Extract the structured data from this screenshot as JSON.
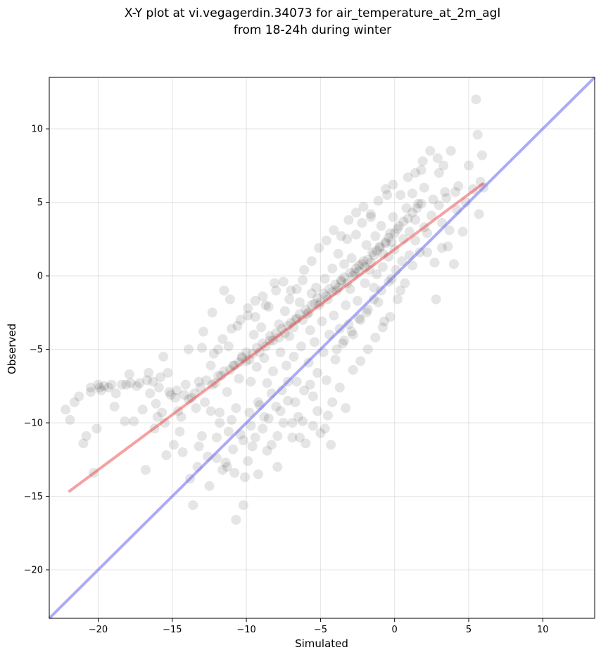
{
  "chart_data": {
    "type": "scatter",
    "title": [
      "X-Y plot at vi.vegagerdin.34073 for air_temperature_at_2m_agl",
      "from 18-24h during winter"
    ],
    "xlabel": "Simulated",
    "ylabel": "Observed",
    "xlim": [
      -23.3,
      13.5
    ],
    "ylim": [
      -23.3,
      13.5
    ],
    "xticks": [
      -20,
      -15,
      -10,
      -5,
      0,
      5,
      10
    ],
    "yticks": [
      -20,
      -15,
      -10,
      -5,
      0,
      5,
      10
    ],
    "xtick_labels": [
      "−20",
      "−15",
      "−10",
      "−5",
      "0",
      "5",
      "10"
    ],
    "ytick_labels": [
      "−20",
      "−15",
      "−10",
      "−5",
      "0",
      "5",
      "10"
    ],
    "grid": true,
    "legend": "none",
    "point_color": "#000000",
    "point_opacity": 0.1,
    "fit_line": {
      "color": "#ee4444",
      "x": [
        -22,
        6
      ],
      "y": [
        -14.7,
        6.3
      ]
    },
    "identity_line": {
      "color": "#6666ee",
      "x": [
        -23.3,
        13.5
      ],
      "y": [
        -23.3,
        13.5
      ]
    },
    "points": [
      [
        -22.2,
        -9.1
      ],
      [
        -21.9,
        -9.8
      ],
      [
        -21.6,
        -8.6
      ],
      [
        -21.3,
        -8.2
      ],
      [
        -21.0,
        -11.4
      ],
      [
        -20.8,
        -10.9
      ],
      [
        -20.5,
        -7.6
      ],
      [
        -20.3,
        -13.4
      ],
      [
        -20.1,
        -10.4
      ],
      [
        -20.0,
        -7.4
      ],
      [
        -19.8,
        -7.8
      ],
      [
        -19.6,
        -7.5
      ],
      [
        -19.3,
        -7.6
      ],
      [
        -19.1,
        -7.4
      ],
      [
        -18.9,
        -8.9
      ],
      [
        -18.8,
        -8.0
      ],
      [
        -18.4,
        -7.4
      ],
      [
        -18.1,
        -7.4
      ],
      [
        -18.2,
        -9.9
      ],
      [
        -17.9,
        -6.7
      ],
      [
        -17.6,
        -9.9
      ],
      [
        -17.4,
        -7.5
      ],
      [
        -17.2,
        -7.3
      ],
      [
        -17.0,
        -9.1
      ],
      [
        -16.8,
        -13.2
      ],
      [
        -16.6,
        -6.6
      ],
      [
        -16.5,
        -8.0
      ],
      [
        -16.3,
        -7.2
      ],
      [
        -16.1,
        -8.7
      ],
      [
        -16.0,
        -9.6
      ],
      [
        -15.8,
        -6.9
      ],
      [
        -15.6,
        -5.5
      ],
      [
        -15.5,
        -10.0
      ],
      [
        -15.4,
        -12.2
      ],
      [
        -15.3,
        -6.6
      ],
      [
        -15.1,
        -8.1
      ],
      [
        -14.9,
        -11.5
      ],
      [
        -14.7,
        -7.8
      ],
      [
        -14.6,
        -9.2
      ],
      [
        -14.4,
        -9.6
      ],
      [
        -14.3,
        -12.0
      ],
      [
        -14.1,
        -7.4
      ],
      [
        -13.9,
        -5.0
      ],
      [
        -13.8,
        -13.8
      ],
      [
        -13.7,
        -8.3
      ],
      [
        -13.6,
        -15.6
      ],
      [
        -13.4,
        -9.0
      ],
      [
        -13.3,
        -13.0
      ],
      [
        -13.2,
        -7.2
      ],
      [
        -13.0,
        -10.9
      ],
      [
        -12.9,
        -3.8
      ],
      [
        -12.8,
        -8.6
      ],
      [
        -12.6,
        -12.3
      ],
      [
        -12.5,
        -14.3
      ],
      [
        -12.4,
        -6.1
      ],
      [
        -12.3,
        -2.5
      ],
      [
        -12.1,
        -7.3
      ],
      [
        -12.0,
        -11.0
      ],
      [
        -11.9,
        -5.0
      ],
      [
        -11.8,
        -9.3
      ],
      [
        -11.7,
        -6.8
      ],
      [
        -11.6,
        -13.2
      ],
      [
        -11.5,
        -1.0
      ],
      [
        -11.4,
        -12.7
      ],
      [
        -11.3,
        -7.9
      ],
      [
        -11.2,
        -4.8
      ],
      [
        -11.1,
        -1.6
      ],
      [
        -11.0,
        -9.8
      ],
      [
        -10.9,
        -6.1
      ],
      [
        -10.8,
        -13.4
      ],
      [
        -10.7,
        -16.6
      ],
      [
        -10.6,
        -3.4
      ],
      [
        -10.5,
        -7.0
      ],
      [
        -10.4,
        -10.8
      ],
      [
        -10.3,
        -5.5
      ],
      [
        -10.2,
        -15.6
      ],
      [
        -10.1,
        -13.7
      ],
      [
        -10.0,
        -5.8
      ],
      [
        -9.9,
        -2.7
      ],
      [
        -9.8,
        -9.3
      ],
      [
        -9.7,
        -7.2
      ],
      [
        -9.6,
        -11.6
      ],
      [
        -9.5,
        -4.0
      ],
      [
        -9.4,
        -1.7
      ],
      [
        -9.3,
        -6.2
      ],
      [
        -9.2,
        -13.5
      ],
      [
        -9.1,
        -8.8
      ],
      [
        -9.0,
        -3.5
      ],
      [
        -8.9,
        -10.4
      ],
      [
        -8.8,
        -5.6
      ],
      [
        -8.7,
        -2.0
      ],
      [
        -8.6,
        -7.3
      ],
      [
        -8.5,
        -9.7
      ],
      [
        -8.4,
        -4.4
      ],
      [
        -8.3,
        -11.5
      ],
      [
        -8.2,
        -6.5
      ],
      [
        -8.1,
        -0.5
      ],
      [
        -8.0,
        -8.9
      ],
      [
        -7.9,
        -13.0
      ],
      [
        -7.8,
        -3.3
      ],
      [
        -7.7,
        -5.2
      ],
      [
        -7.6,
        -7.8
      ],
      [
        -7.5,
        -10.0
      ],
      [
        -7.4,
        -2.4
      ],
      [
        -7.3,
        -6.1
      ],
      [
        -7.2,
        -8.5
      ],
      [
        -7.1,
        -4.1
      ],
      [
        -7.0,
        -1.0
      ],
      [
        -6.9,
        -11.0
      ],
      [
        -6.8,
        -5.5
      ],
      [
        -6.7,
        -3.0
      ],
      [
        -6.6,
        -7.2
      ],
      [
        -6.5,
        -9.6
      ],
      [
        -6.4,
        -1.8
      ],
      [
        -6.3,
        -4.8
      ],
      [
        -6.2,
        -0.3
      ],
      [
        -6.1,
        -7.8
      ],
      [
        -6.0,
        -11.4
      ],
      [
        -5.9,
        -2.6
      ],
      [
        -5.8,
        -5.9
      ],
      [
        -5.7,
        -3.7
      ],
      [
        -5.6,
        -1.2
      ],
      [
        -5.5,
        -8.2
      ],
      [
        -5.4,
        -4.5
      ],
      [
        -5.3,
        -0.8
      ],
      [
        -5.2,
        -6.6
      ],
      [
        -5.1,
        -2.0
      ],
      [
        -5.0,
        -10.7
      ],
      [
        -4.9,
        -3.1
      ],
      [
        -4.8,
        -5.2
      ],
      [
        -4.7,
        -0.2
      ],
      [
        -4.6,
        -7.1
      ],
      [
        -4.5,
        -1.6
      ],
      [
        -4.4,
        -4.0
      ],
      [
        -4.3,
        -11.5
      ],
      [
        -4.2,
        0.5
      ],
      [
        -4.1,
        -2.7
      ],
      [
        -4.0,
        -5.7
      ],
      [
        -3.9,
        -1.0
      ],
      [
        -3.8,
        1.5
      ],
      [
        -3.7,
        -3.6
      ],
      [
        -3.6,
        -0.4
      ],
      [
        -3.5,
        -4.6
      ],
      [
        -3.4,
        0.8
      ],
      [
        -3.3,
        -2.0
      ],
      [
        -3.2,
        2.5
      ],
      [
        -3.1,
        -3.3
      ],
      [
        -3.0,
        -0.9
      ],
      [
        -2.9,
        1.2
      ],
      [
        -2.8,
        -4.0
      ],
      [
        -2.7,
        0.2
      ],
      [
        -2.6,
        2.8
      ],
      [
        -2.5,
        -1.7
      ],
      [
        -2.4,
        0.7
      ],
      [
        -2.3,
        -3.0
      ],
      [
        -2.2,
        3.6
      ],
      [
        -2.1,
        1.0
      ],
      [
        -2.0,
        -0.5
      ],
      [
        -1.9,
        2.1
      ],
      [
        -1.8,
        -2.3
      ],
      [
        -1.7,
        0.4
      ],
      [
        -1.6,
        4.2
      ],
      [
        -1.5,
        1.6
      ],
      [
        -1.4,
        -0.8
      ],
      [
        -1.3,
        2.7
      ],
      [
        -1.2,
        0.1
      ],
      [
        -1.1,
        -1.8
      ],
      [
        -1.0,
        1.9
      ],
      [
        -0.9,
        3.4
      ],
      [
        -0.8,
        0.6
      ],
      [
        -0.7,
        -3.1
      ],
      [
        -0.6,
        2.3
      ],
      [
        -0.5,
        5.5
      ],
      [
        -0.4,
        1.3
      ],
      [
        -0.3,
        2.9
      ],
      [
        -0.2,
        -0.2
      ],
      [
        -0.1,
        4.0
      ],
      [
        0.0,
        1.8
      ],
      [
        0.2,
        3.2
      ],
      [
        0.4,
        -1.0
      ],
      [
        0.6,
        2.5
      ],
      [
        0.8,
        4.6
      ],
      [
        1.0,
        3.0
      ],
      [
        1.2,
        5.6
      ],
      [
        1.4,
        3.8
      ],
      [
        1.6,
        4.9
      ],
      [
        1.8,
        7.2
      ],
      [
        2.0,
        6.0
      ],
      [
        2.2,
        1.6
      ],
      [
        2.4,
        8.5
      ],
      [
        2.6,
        5.2
      ],
      [
        2.8,
        -1.6
      ],
      [
        3.0,
        7.0
      ],
      [
        3.2,
        3.6
      ],
      [
        3.4,
        5.7
      ],
      [
        3.6,
        2.0
      ],
      [
        3.8,
        8.5
      ],
      [
        4.0,
        0.8
      ],
      [
        4.2,
        4.5
      ],
      [
        4.6,
        3.0
      ],
      [
        5.0,
        7.5
      ],
      [
        5.5,
        12.0
      ],
      [
        5.6,
        9.6
      ],
      [
        5.7,
        4.2
      ],
      [
        5.8,
        6.4
      ],
      [
        5.9,
        8.2
      ],
      [
        6.0,
        6.0
      ],
      [
        -20.5,
        -7.9
      ],
      [
        -19.9,
        -7.6
      ],
      [
        -17.8,
        -7.3
      ],
      [
        -16.7,
        -7.1
      ],
      [
        -15.9,
        -7.6
      ],
      [
        -15.2,
        -7.9
      ],
      [
        -14.8,
        -8.3
      ],
      [
        -14.2,
        -8.1
      ],
      [
        -13.9,
        -8.4
      ],
      [
        -13.5,
        -8.0
      ],
      [
        -13.1,
        -7.6
      ],
      [
        -12.7,
        -7.1
      ],
      [
        -12.3,
        -7.4
      ],
      [
        -11.9,
        -6.8
      ],
      [
        -11.5,
        -6.5
      ],
      [
        -11.1,
        -6.4
      ],
      [
        -10.8,
        -6.1
      ],
      [
        -10.5,
        -5.9
      ],
      [
        -10.3,
        -5.6
      ],
      [
        -10.0,
        -5.2
      ],
      [
        -9.8,
        -5.7
      ],
      [
        -9.6,
        -5.3
      ],
      [
        -9.3,
        -4.9
      ],
      [
        -9.1,
        -5.2
      ],
      [
        -8.9,
        -4.6
      ],
      [
        -8.7,
        -4.8
      ],
      [
        -8.4,
        -4.1
      ],
      [
        -8.2,
        -4.4
      ],
      [
        -8.0,
        -3.9
      ],
      [
        -7.8,
        -4.2
      ],
      [
        -7.6,
        -3.6
      ],
      [
        -7.4,
        -3.9
      ],
      [
        -7.2,
        -3.4
      ],
      [
        -7.0,
        -3.2
      ],
      [
        -6.8,
        -3.5
      ],
      [
        -6.6,
        -2.9
      ],
      [
        -6.4,
        -2.6
      ],
      [
        -6.2,
        -3.0
      ],
      [
        -6.0,
        -2.3
      ],
      [
        -5.8,
        -2.5
      ],
      [
        -5.6,
        -2.0
      ],
      [
        -5.4,
        -1.9
      ],
      [
        -5.2,
        -1.5
      ],
      [
        -5.0,
        -1.8
      ],
      [
        -4.8,
        -1.2
      ],
      [
        -4.6,
        -1.4
      ],
      [
        -4.4,
        -0.9
      ],
      [
        -4.2,
        -1.1
      ],
      [
        -4.0,
        -0.6
      ],
      [
        -3.8,
        -0.8
      ],
      [
        -3.6,
        -0.3
      ],
      [
        -3.4,
        -0.1
      ],
      [
        -3.2,
        -0.5
      ],
      [
        -3.0,
        0.2
      ],
      [
        -2.8,
        0.0
      ],
      [
        -2.6,
        0.5
      ],
      [
        -2.4,
        0.3
      ],
      [
        -2.2,
        0.8
      ],
      [
        -2.0,
        0.6
      ],
      [
        -1.8,
        1.1
      ],
      [
        -1.6,
        0.9
      ],
      [
        -1.4,
        1.4
      ],
      [
        -1.2,
        1.7
      ],
      [
        -1.0,
        2.0
      ],
      [
        -0.8,
        1.5
      ],
      [
        -0.6,
        2.2
      ],
      [
        -0.4,
        2.6
      ],
      [
        -0.2,
        2.3
      ],
      [
        0.0,
        2.9
      ],
      [
        0.3,
        3.4
      ],
      [
        0.6,
        3.7
      ],
      [
        0.9,
        3.9
      ],
      [
        1.2,
        4.3
      ],
      [
        1.5,
        4.6
      ],
      [
        1.8,
        4.9
      ],
      [
        -12.4,
        -9.2
      ],
      [
        -11.8,
        -10.0
      ],
      [
        -11.2,
        -10.6
      ],
      [
        -10.7,
        -9.0
      ],
      [
        -10.2,
        -11.2
      ],
      [
        -9.7,
        -10.2
      ],
      [
        -9.2,
        -8.6
      ],
      [
        -8.8,
        -9.6
      ],
      [
        -8.3,
        -8.0
      ],
      [
        -7.7,
        -9.2
      ],
      [
        -7.2,
        -7.2
      ],
      [
        -6.7,
        -8.6
      ],
      [
        -6.2,
        -9.9
      ],
      [
        -5.7,
        -7.4
      ],
      [
        -5.2,
        -9.2
      ],
      [
        -4.7,
        -10.4
      ],
      [
        -4.2,
        -8.6
      ],
      [
        -3.7,
        -7.6
      ],
      [
        -3.3,
        -9.0
      ],
      [
        -2.8,
        -6.4
      ],
      [
        -2.3,
        -5.8
      ],
      [
        -1.8,
        -5.0
      ],
      [
        -1.3,
        -4.2
      ],
      [
        -0.8,
        -3.5
      ],
      [
        -0.3,
        -2.8
      ],
      [
        0.2,
        -1.6
      ],
      [
        0.7,
        -0.5
      ],
      [
        1.2,
        0.7
      ],
      [
        1.7,
        1.6
      ],
      [
        2.2,
        2.9
      ],
      [
        2.7,
        0.9
      ],
      [
        3.2,
        1.9
      ],
      [
        3.7,
        3.1
      ],
      [
        4.3,
        6.1
      ],
      [
        4.8,
        5.0
      ],
      [
        -16.2,
        -10.4
      ],
      [
        -15.7,
        -9.3
      ],
      [
        -14.5,
        -10.6
      ],
      [
        -13.2,
        -11.6
      ],
      [
        -12.0,
        -12.4
      ],
      [
        -11.3,
        -13.0
      ],
      [
        -10.9,
        -11.8
      ],
      [
        -9.9,
        -12.6
      ],
      [
        -9.4,
        -11.0
      ],
      [
        -8.6,
        -11.9
      ],
      [
        -7.9,
        -10.9
      ],
      [
        -6.9,
        -10.0
      ],
      [
        -6.4,
        -11.0
      ],
      [
        -5.5,
        -10.2
      ],
      [
        -4.5,
        -9.5
      ],
      [
        -3.9,
        -5.0
      ],
      [
        -3.4,
        -4.4
      ],
      [
        -2.9,
        -3.8
      ],
      [
        -2.4,
        -2.9
      ],
      [
        -1.9,
        -2.5
      ],
      [
        -1.4,
        -1.6
      ],
      [
        -0.9,
        -1.0
      ],
      [
        -0.4,
        -0.4
      ],
      [
        0.1,
        0.4
      ],
      [
        0.5,
        1.0
      ],
      [
        1.0,
        1.4
      ],
      [
        1.4,
        2.4
      ],
      [
        2.0,
        3.3
      ],
      [
        2.5,
        4.1
      ],
      [
        3.0,
        4.8
      ],
      [
        3.5,
        5.3
      ],
      [
        4.1,
        5.7
      ],
      [
        5.3,
        5.9
      ],
      [
        -13.0,
        -4.9
      ],
      [
        -12.2,
        -5.3
      ],
      [
        -11.6,
        -4.3
      ],
      [
        -11.0,
        -3.6
      ],
      [
        -10.4,
        -3.0
      ],
      [
        -9.9,
        -2.2
      ],
      [
        -9.4,
        -2.8
      ],
      [
        -8.9,
        -1.4
      ],
      [
        -8.5,
        -2.1
      ],
      [
        -8.0,
        -1.0
      ],
      [
        -7.5,
        -0.4
      ],
      [
        -7.1,
        -1.6
      ],
      [
        -6.6,
        -0.9
      ],
      [
        -6.1,
        0.4
      ],
      [
        -5.6,
        1.0
      ],
      [
        -5.1,
        1.9
      ],
      [
        -4.6,
        2.4
      ],
      [
        -4.1,
        3.1
      ],
      [
        -3.6,
        2.7
      ],
      [
        -3.1,
        3.8
      ],
      [
        -2.6,
        4.3
      ],
      [
        -2.1,
        4.7
      ],
      [
        -1.6,
        4.0
      ],
      [
        -1.1,
        5.1
      ],
      [
        -0.6,
        5.9
      ],
      [
        -0.1,
        6.2
      ],
      [
        0.4,
        5.5
      ],
      [
        0.9,
        6.7
      ],
      [
        1.4,
        7.0
      ],
      [
        1.9,
        7.8
      ],
      [
        2.9,
        8.0
      ],
      [
        3.3,
        7.5
      ]
    ]
  }
}
